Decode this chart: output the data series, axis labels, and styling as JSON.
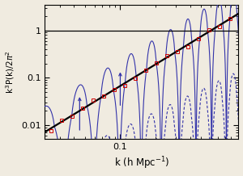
{
  "title": "",
  "xlabel": "k (h Mpc$^{-1}$)",
  "ylabel": "k$^3$P(k)/2$\\pi^2$",
  "xlim_log": [
    -1.65,
    0.02
  ],
  "ylim_log": [
    -2.3,
    0.55
  ],
  "yticks": [
    0.01,
    0.1,
    1
  ],
  "ytick_labels": [
    "0.01",
    "0.1",
    "1"
  ],
  "xticks": [
    0.1
  ],
  "xtick_labels": [
    "0.1"
  ],
  "hline_y": 1.0,
  "hline_color": "#000000",
  "black_line_color": "#000000",
  "red_data_color": "#cc0000",
  "blue_line_color": "#3333aa",
  "background_color": "#f0ebe0"
}
